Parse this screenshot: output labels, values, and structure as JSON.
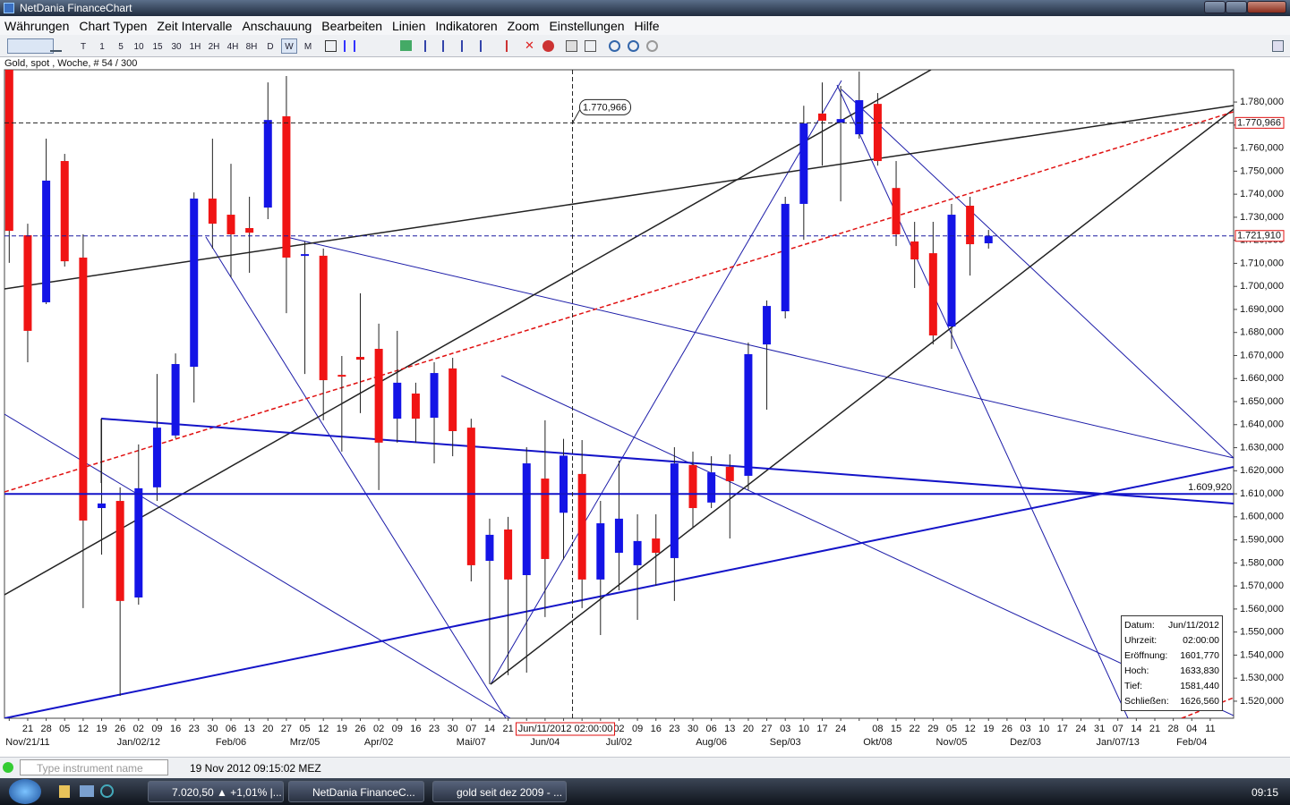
{
  "window": {
    "title": "NetDania FinanceChart"
  },
  "menu": [
    "Währungen",
    "Chart Typen",
    "Zeit Intervalle",
    "Anschauung",
    "Bearbeiten",
    "Linien",
    "Indikatoren",
    "Zoom",
    "Einstellungen",
    "Hilfe"
  ],
  "toolbar": [
    "T",
    "1",
    "5",
    "10",
    "15",
    "30",
    "1H",
    "2H",
    "4H",
    "8H",
    "D",
    "W",
    "M"
  ],
  "chart_info": "Gold, spot , Woche, # 54 / 300",
  "chart_data": {
    "type": "candlestick",
    "categories": [
      null,
      "21",
      "28",
      "05",
      "12",
      "19",
      "26",
      "02",
      "09",
      "16",
      "23",
      "30",
      "06",
      "13",
      "20",
      "27",
      "05",
      "12",
      "19",
      "26",
      "02",
      "09",
      "16",
      "23",
      "30",
      "07",
      "14",
      "21",
      null,
      null,
      null,
      null,
      null,
      "02",
      "09",
      "16",
      "23",
      "30",
      "06",
      "13",
      "20",
      "27",
      "03",
      "10",
      "17",
      "24",
      null,
      "08",
      "15",
      "22",
      "29",
      "05",
      "12",
      "19",
      "26",
      "03",
      "10",
      "17",
      "24",
      "31",
      "07",
      "14",
      "21",
      "28",
      "04",
      "11"
    ],
    "month_labels": [
      null,
      "Nov/21/11",
      null,
      null,
      null,
      null,
      null,
      "Jan/02/12",
      null,
      null,
      null,
      null,
      "Feb/06",
      null,
      null,
      null,
      "Mrz/05",
      null,
      null,
      null,
      "Apr/02",
      null,
      null,
      null,
      null,
      "Mai/07",
      null,
      null,
      null,
      "Jun/04",
      null,
      null,
      null,
      "Jul/02",
      null,
      null,
      null,
      null,
      "Aug/06",
      null,
      null,
      null,
      "Sep/03",
      null,
      null,
      null,
      null,
      "Okt/08",
      null,
      null,
      null,
      "Nov/05",
      null,
      null,
      null,
      "Dez/03",
      null,
      null,
      null,
      null,
      "Jan/07/13",
      null,
      null,
      null,
      "Feb/04",
      null
    ],
    "open": [
      1796,
      1722.2,
      1693.1,
      1754.4,
      1712.5,
      1603.8,
      1606.9,
      1565.0,
      1612.8,
      1635.3,
      1665.1,
      1738.1,
      1731.1,
      1725.3,
      1734.2,
      1773.8,
      1713.3,
      1713.3,
      1661.6,
      1669.4,
      1672.9,
      1642.6,
      1653.5,
      1643.0,
      1664.4,
      1638.7,
      1580.9,
      1594.5,
      1574.7,
      1616.6,
      1601.77,
      1618.6,
      1572.8,
      1584.4,
      1579.0,
      1590.6,
      1582.1,
      1622.5,
      1606.2,
      1621.7,
      1617.8,
      1674.8,
      1689.2,
      1735.8,
      1775.0,
      1771.1,
      1766.0,
      1779.2,
      1742.7,
      1719.5,
      1714.4,
      1682.6,
      1735.0,
      1718.7,
      null,
      null,
      null,
      null,
      null,
      null,
      null,
      null,
      null,
      null,
      null,
      null
    ],
    "high": [
      1802,
      1727.2,
      1764.1,
      1757.5,
      1722.6,
      1642.6,
      1612.8,
      1631.4,
      1662.0,
      1670.9,
      1740.8,
      1764.1,
      1753.2,
      1738.9,
      1788.5,
      1791.3,
      1719.5,
      1716.4,
      1669.8,
      1697.0,
      1683.8,
      1680.7,
      1658.2,
      1667.1,
      1669.0,
      1642.6,
      1599.2,
      1600.0,
      1630.2,
      1641.9,
      1633.83,
      1633.3,
      1606.9,
      1624.4,
      1601.1,
      1601.1,
      1630.2,
      1628.3,
      1626.3,
      1627.1,
      1675.6,
      1693.9,
      1738.9,
      1778.4,
      1788.5,
      1787.0,
      1793.2,
      1783.9,
      1754.4,
      1728.0,
      1728.0,
      1735.8,
      1738.9,
      1724.5,
      null,
      null,
      null,
      null,
      null,
      null,
      null,
      null,
      null,
      null,
      null,
      null
    ],
    "low": [
      1710.2,
      1667.1,
      1692.3,
      1708.6,
      1560.4,
      1583.6,
      1522.3,
      1561.9,
      1606.9,
      1634.1,
      1649.6,
      1716.4,
      1703.9,
      1705.9,
      1729.2,
      1688.4,
      1662.0,
      1641.9,
      1628.3,
      1645.0,
      1611.6,
      1632.2,
      1632.2,
      1623.2,
      1626.3,
      1572.0,
      1527.4,
      1531.3,
      1532.4,
      1556.5,
      1581.44,
      1560.4,
      1548.7,
      1568.1,
      1555.3,
      1570.1,
      1563.5,
      1595.3,
      1603.8,
      1590.6,
      1611.6,
      1646.5,
      1686.1,
      1720.2,
      1752.4,
      1736.9,
      1764.1,
      1752.4,
      1717.5,
      1699.3,
      1674.8,
      1672.9,
      1704.7,
      1716.4,
      null,
      null,
      null,
      null,
      null,
      null,
      null,
      null,
      null,
      null,
      null,
      null
    ],
    "close": [
      1724.1,
      1680.7,
      1745.9,
      1710.9,
      1598.4,
      1605.8,
      1563.5,
      1612.4,
      1638.7,
      1666.3,
      1738.1,
      1727.2,
      1722.6,
      1723.3,
      1772.2,
      1712.5,
      1714.0,
      1659.3,
      1660.9,
      1668.2,
      1632.2,
      1658.2,
      1642.6,
      1662.4,
      1637.2,
      1579.0,
      1592.2,
      1572.8,
      1623.2,
      1581.7,
      1626.56,
      1572.8,
      1597.2,
      1599.2,
      1589.5,
      1584.4,
      1623.2,
      1603.8,
      1619.3,
      1615.5,
      1670.6,
      1691.5,
      1735.8,
      1770.7,
      1771.9,
      1772.6,
      1780.8,
      1754.4,
      1722.6,
      1711.7,
      1678.7,
      1731.1,
      1718.3,
      1721.91,
      null,
      null,
      null,
      null,
      null,
      null,
      null,
      null,
      null,
      null,
      null,
      null
    ],
    "up_color": "#1414e6",
    "down_color": "#f01414",
    "ylim": [
      1512.6,
      1794.0
    ],
    "yticks": [
      {
        "value": 1780,
        "label": "1.780,000"
      },
      {
        "value": 1770,
        "label": "1.770,000"
      },
      {
        "value": 1760,
        "label": "1.760,000"
      },
      {
        "value": 1750,
        "label": "1.750,000"
      },
      {
        "value": 1740,
        "label": "1.740,000"
      },
      {
        "value": 1730,
        "label": "1.730,000"
      },
      {
        "value": 1720,
        "label": "1.720,000"
      },
      {
        "value": 1710,
        "label": "1.710,000"
      },
      {
        "value": 1700,
        "label": "1.700,000"
      },
      {
        "value": 1690,
        "label": "1.690,000"
      },
      {
        "value": 1680,
        "label": "1.680,000"
      },
      {
        "value": 1670,
        "label": "1.670,000"
      },
      {
        "value": 1660,
        "label": "1.660,000"
      },
      {
        "value": 1650,
        "label": "1.650,000"
      },
      {
        "value": 1640,
        "label": "1.640,000"
      },
      {
        "value": 1630,
        "label": "1.630,000"
      },
      {
        "value": 1620,
        "label": "1.620,000"
      },
      {
        "value": 1610,
        "label": "1.610,000"
      },
      {
        "value": 1600,
        "label": "1.600,000"
      },
      {
        "value": 1590,
        "label": "1.590,000"
      },
      {
        "value": 1580,
        "label": "1.580,000"
      },
      {
        "value": 1570,
        "label": "1.570,000"
      },
      {
        "value": 1560,
        "label": "1.560,000"
      },
      {
        "value": 1550,
        "label": "1.550,000"
      },
      {
        "value": 1540,
        "label": "1.540,000"
      },
      {
        "value": 1530,
        "label": "1.530,000"
      },
      {
        "value": 1520,
        "label": "1.520,000"
      }
    ],
    "levels": [
      {
        "value": {
          "value": 1721.91,
          "label": "1.721,910"
        },
        "color": "#1a1aa0",
        "dashed": true,
        "axis_box": true
      },
      {
        "value": {
          "value": 1609.92,
          "label": "1.609,920"
        },
        "color": "#1414c8",
        "dashed": false,
        "axis_box": false
      }
    ],
    "crosshair": {
      "category": 30,
      "price": {
        "value": 1770.966,
        "label": "1.770,966"
      },
      "label": "Jun/11/2012 02:00:00"
    }
  },
  "info_box": {
    "rows": [
      [
        "Datum:",
        "Jun/11/2012"
      ],
      [
        "Uhrzeit:",
        "02:00:00"
      ],
      [
        "Eröffnung:",
        "1601,770"
      ],
      [
        "Hoch:",
        "1633,830"
      ],
      [
        "Tief:",
        "1581,440"
      ],
      [
        "Schließen:",
        "1626,560"
      ]
    ]
  },
  "status_bar": {
    "search_placeholder": "Type instrument name",
    "timestamp": "19 Nov 2012 09:15:02 MEZ"
  },
  "taskbar": {
    "buttons": [
      "7.020,50 ▲ +1,01% |...",
      "NetDania FinanceC...",
      "gold seit dez 2009 - ..."
    ],
    "clock": "09:15"
  }
}
